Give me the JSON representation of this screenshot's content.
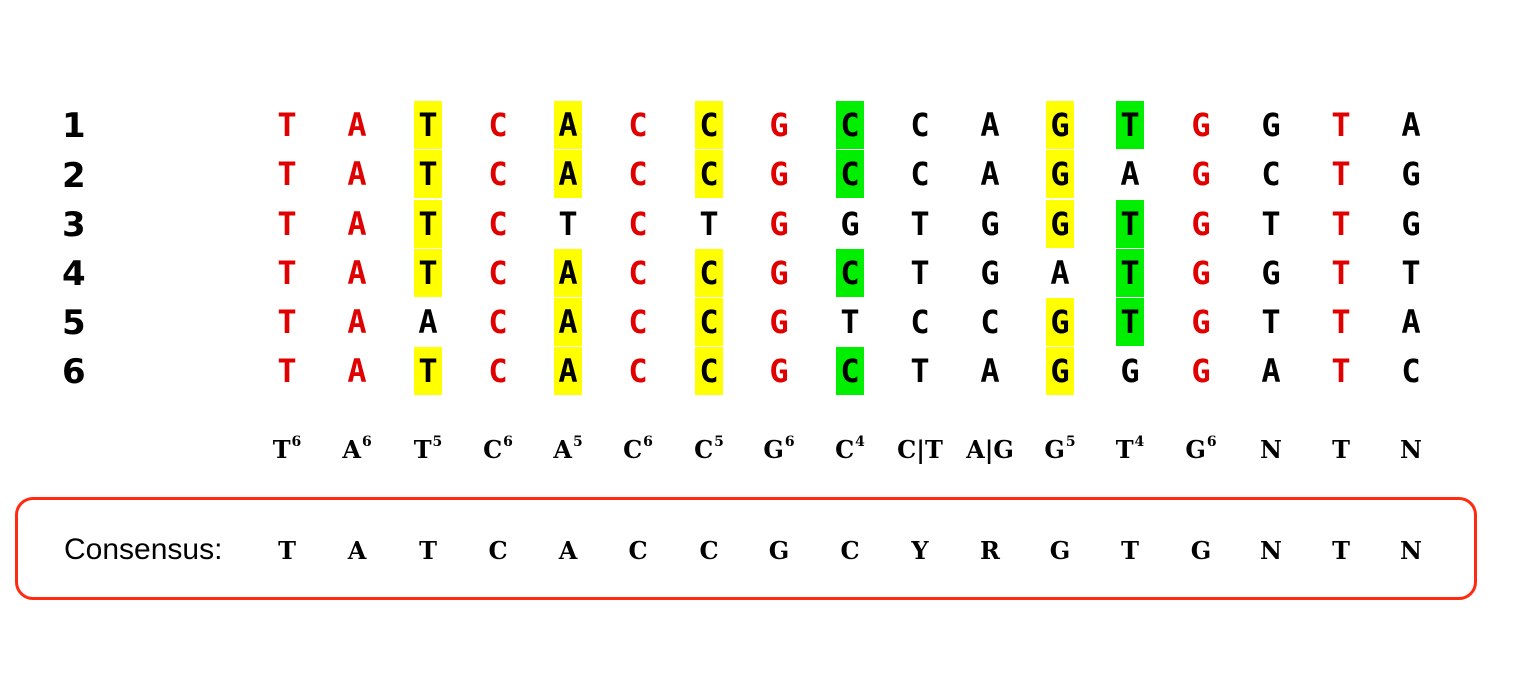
{
  "alignment": {
    "rows": [
      {
        "label": "1",
        "seq": [
          "T",
          "A",
          "T",
          "C",
          "A",
          "C",
          "C",
          "G",
          "C",
          "C",
          "A",
          "G",
          "T",
          "G",
          "G",
          "T",
          "A"
        ]
      },
      {
        "label": "2",
        "seq": [
          "T",
          "A",
          "T",
          "C",
          "A",
          "C",
          "C",
          "G",
          "C",
          "C",
          "A",
          "G",
          "A",
          "G",
          "C",
          "T",
          "G"
        ]
      },
      {
        "label": "3",
        "seq": [
          "T",
          "A",
          "T",
          "C",
          "T",
          "C",
          "T",
          "G",
          "G",
          "T",
          "G",
          "G",
          "T",
          "G",
          "T",
          "T",
          "G"
        ]
      },
      {
        "label": "4",
        "seq": [
          "T",
          "A",
          "T",
          "C",
          "A",
          "C",
          "C",
          "G",
          "C",
          "T",
          "G",
          "A",
          "T",
          "G",
          "G",
          "T",
          "T"
        ]
      },
      {
        "label": "5",
        "seq": [
          "T",
          "A",
          "A",
          "C",
          "A",
          "C",
          "C",
          "G",
          "T",
          "C",
          "C",
          "G",
          "T",
          "G",
          "T",
          "T",
          "A"
        ]
      },
      {
        "label": "6",
        "seq": [
          "T",
          "A",
          "T",
          "C",
          "A",
          "C",
          "C",
          "G",
          "C",
          "T",
          "A",
          "G",
          "G",
          "G",
          "A",
          "T",
          "C"
        ]
      }
    ],
    "conserved_columns": [
      0,
      1,
      3,
      5,
      7,
      13,
      15
    ],
    "highlights": [
      {
        "row": 0,
        "col": 2,
        "color": "yellow"
      },
      {
        "row": 1,
        "col": 2,
        "color": "yellow"
      },
      {
        "row": 2,
        "col": 2,
        "color": "yellow"
      },
      {
        "row": 3,
        "col": 2,
        "color": "yellow"
      },
      {
        "row": 5,
        "col": 2,
        "color": "yellow"
      },
      {
        "row": 0,
        "col": 4,
        "color": "yellow"
      },
      {
        "row": 1,
        "col": 4,
        "color": "yellow"
      },
      {
        "row": 3,
        "col": 4,
        "color": "yellow"
      },
      {
        "row": 4,
        "col": 4,
        "color": "yellow"
      },
      {
        "row": 5,
        "col": 4,
        "color": "yellow"
      },
      {
        "row": 0,
        "col": 6,
        "color": "yellow"
      },
      {
        "row": 1,
        "col": 6,
        "color": "yellow"
      },
      {
        "row": 3,
        "col": 6,
        "color": "yellow"
      },
      {
        "row": 4,
        "col": 6,
        "color": "yellow"
      },
      {
        "row": 5,
        "col": 6,
        "color": "yellow"
      },
      {
        "row": 0,
        "col": 8,
        "color": "green"
      },
      {
        "row": 1,
        "col": 8,
        "color": "green"
      },
      {
        "row": 3,
        "col": 8,
        "color": "green"
      },
      {
        "row": 5,
        "col": 8,
        "color": "green"
      },
      {
        "row": 0,
        "col": 11,
        "color": "yellow"
      },
      {
        "row": 1,
        "col": 11,
        "color": "yellow"
      },
      {
        "row": 2,
        "col": 11,
        "color": "yellow"
      },
      {
        "row": 4,
        "col": 11,
        "color": "yellow"
      },
      {
        "row": 5,
        "col": 11,
        "color": "yellow"
      },
      {
        "row": 0,
        "col": 12,
        "color": "green"
      },
      {
        "row": 2,
        "col": 12,
        "color": "green"
      },
      {
        "row": 3,
        "col": 12,
        "color": "green"
      },
      {
        "row": 4,
        "col": 12,
        "color": "green"
      }
    ]
  },
  "counts": [
    {
      "base": "T",
      "n": "6"
    },
    {
      "base": "A",
      "n": "6"
    },
    {
      "base": "T",
      "n": "5"
    },
    {
      "base": "C",
      "n": "6"
    },
    {
      "base": "A",
      "n": "5"
    },
    {
      "base": "C",
      "n": "6"
    },
    {
      "base": "C",
      "n": "5"
    },
    {
      "base": "G",
      "n": "6"
    },
    {
      "base": "C",
      "n": "4"
    },
    {
      "base": "C|T",
      "n": ""
    },
    {
      "base": "A|G",
      "n": ""
    },
    {
      "base": "G",
      "n": "5"
    },
    {
      "base": "T",
      "n": "4"
    },
    {
      "base": "G",
      "n": "6"
    },
    {
      "base": "N",
      "n": ""
    },
    {
      "base": "T",
      "n": ""
    },
    {
      "base": "N",
      "n": ""
    }
  ],
  "consensus": {
    "label": "Consensus:",
    "seq": [
      "T",
      "A",
      "T",
      "C",
      "A",
      "C",
      "C",
      "G",
      "C",
      "Y",
      "R",
      "G",
      "T",
      "G",
      "N",
      "T",
      "N"
    ]
  },
  "colors": {
    "conserved": "#e00000",
    "normal": "#000000",
    "yellow": "#ffff00",
    "green": "#00ee00",
    "box_border": "#ff2a10"
  }
}
